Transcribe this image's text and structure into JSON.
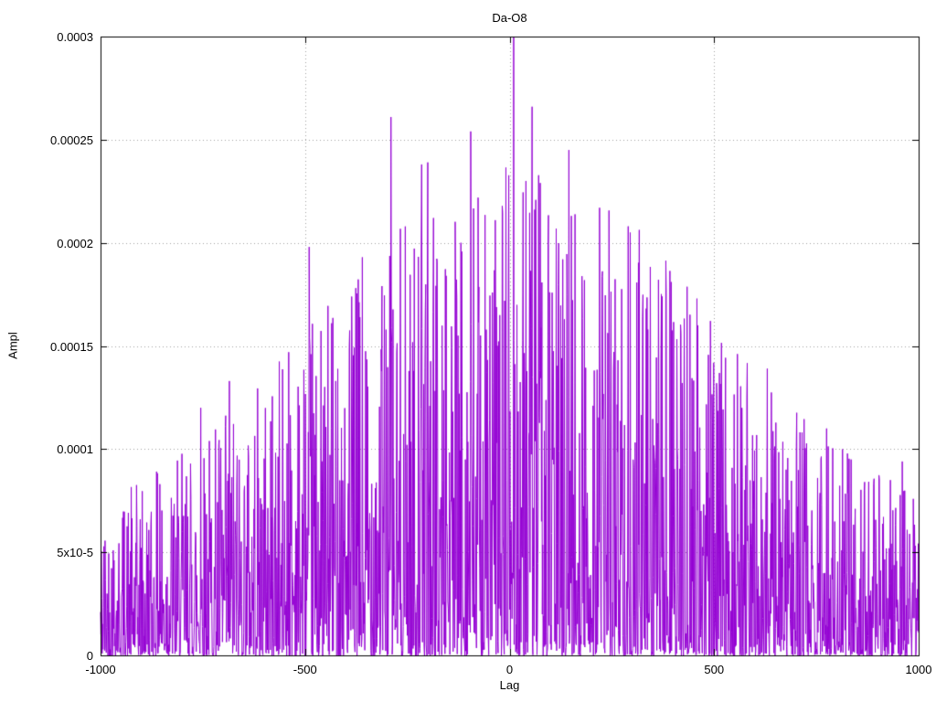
{
  "figure": {
    "title": "Da-O8",
    "xlabel": "Lag",
    "ylabel": "Ampl"
  },
  "chart_data": {
    "type": "line",
    "title": "Da-O8",
    "xlabel": "Lag",
    "ylabel": "Ampl",
    "xlim": [
      -1000,
      1000
    ],
    "ylim": [
      0,
      0.0003
    ],
    "grid": true,
    "legend": "none",
    "line_color": "#9400d3",
    "grid_color": "#a0a0a0",
    "border_color": "#000000",
    "xticks": {
      "values": [
        -1000,
        -500,
        0,
        500,
        1000
      ],
      "labels": [
        "-1000",
        "-500",
        "0",
        "500",
        "1000"
      ]
    },
    "yticks": {
      "values": [
        0,
        5e-05,
        0.0001,
        0.00015,
        0.0002,
        0.00025,
        0.0003
      ],
      "labels": [
        "0",
        "5x10-5",
        "0.0001",
        "0.00015",
        "0.0002",
        "0.00025",
        "0.0003"
      ]
    },
    "series": [
      {
        "name": "Da-O8",
        "description": "Noisy amplitude-vs-lag correlation spectrum; dense random spikes whose envelope peaks near lag 0 and decays toward the edges",
        "points_count": 2001,
        "seed": 42,
        "noise_exponent": 2.5,
        "envelope": [
          [
            -1000,
            7.5e-05
          ],
          [
            -900,
            8.5e-05
          ],
          [
            -800,
            0.0001
          ],
          [
            -700,
            0.00012
          ],
          [
            -600,
            0.000135
          ],
          [
            -500,
            0.00016
          ],
          [
            -400,
            0.00018
          ],
          [
            -300,
            0.000205
          ],
          [
            -200,
            0.000215
          ],
          [
            -100,
            0.000225
          ],
          [
            0,
            0.00024
          ],
          [
            100,
            0.00023
          ],
          [
            200,
            0.000225
          ],
          [
            300,
            0.00021
          ],
          [
            400,
            0.00019
          ],
          [
            500,
            0.000165
          ],
          [
            600,
            0.00014
          ],
          [
            700,
            0.00012
          ],
          [
            800,
            0.000105
          ],
          [
            900,
            9e-05
          ],
          [
            1000,
            8e-05
          ]
        ],
        "peaks": [
          [
            10,
            0.0003
          ],
          [
            55,
            0.000266
          ],
          [
            -290,
            0.000261
          ],
          [
            -95,
            0.000254
          ],
          [
            145,
            0.000245
          ],
          [
            -200,
            0.000239
          ],
          [
            -215,
            0.000238
          ],
          [
            40,
            0.00023
          ],
          [
            220,
            0.000217
          ],
          [
            290,
            0.000208
          ],
          [
            -490,
            0.000198
          ],
          [
            130,
            0.000192
          ],
          [
            -360,
            0.000193
          ],
          [
            -155,
            0.000184
          ],
          [
            395,
            0.000181
          ],
          [
            -435,
            0.000161
          ],
          [
            460,
            0.00016
          ],
          [
            -540,
            0.000147
          ],
          [
            630,
            0.000139
          ],
          [
            775,
            0.00011
          ],
          [
            -685,
            0.000133
          ],
          [
            -755,
            0.00012
          ],
          [
            960,
            9.4e-05
          ],
          [
            -855,
            8.3e-05
          ]
        ]
      }
    ]
  }
}
